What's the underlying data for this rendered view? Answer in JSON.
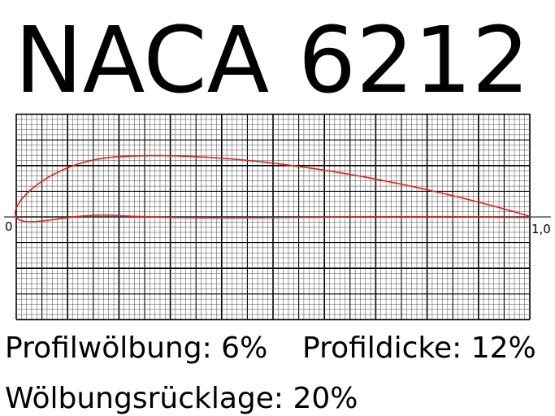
{
  "title": "NACA 6212",
  "axis": {
    "start_label": "0",
    "end_label": "1,0"
  },
  "profile": {
    "max_camber": 0.06,
    "camber_position": 0.2,
    "thickness": 0.12
  },
  "colors": {
    "profile": "#e02020",
    "grid": "#000000"
  },
  "info": {
    "camber_text": "Profilwölbung: 6%",
    "thickness_text": "Profildicke: 12%",
    "camber_position_text": "Wölbungsrücklage: 20%"
  }
}
